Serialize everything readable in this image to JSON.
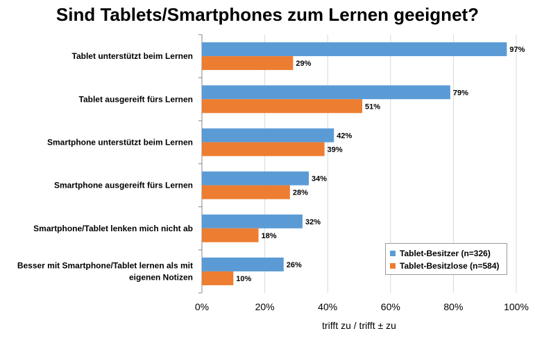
{
  "chart_data": {
    "type": "bar",
    "orientation": "horizontal",
    "title": "Sind Tablets/Smartphones zum Lernen geeignet?",
    "xlabel": "trifft zu / trifft ± zu",
    "ylabel": "",
    "xlim": [
      0,
      100
    ],
    "xticks": [
      "0%",
      "20%",
      "40%",
      "60%",
      "80%",
      "100%"
    ],
    "categories": [
      [
        "Tablet unterstützt beim Lernen"
      ],
      [
        "Tablet ausgereift fürs Lernen"
      ],
      [
        "Smartphone unterstützt beim Lernen"
      ],
      [
        "Smartphone ausgereift fürs Lernen"
      ],
      [
        "Smartphone/Tablet lenken mich nicht ab"
      ],
      [
        "Besser mit Smartphone/Tablet lernen als mit",
        "eigenen Notizen"
      ]
    ],
    "series": [
      {
        "name": "Tablet-Besitzer (n=326)",
        "color": "#5b9bd5",
        "values": [
          97,
          79,
          42,
          34,
          32,
          26
        ]
      },
      {
        "name": "Tablet-Besitzlose (n=584)",
        "color": "#ed7d31",
        "values": [
          29,
          51,
          39,
          28,
          18,
          10
        ]
      }
    ],
    "value_suffix": "%",
    "grid": true,
    "legend_position": "bottom-right"
  }
}
